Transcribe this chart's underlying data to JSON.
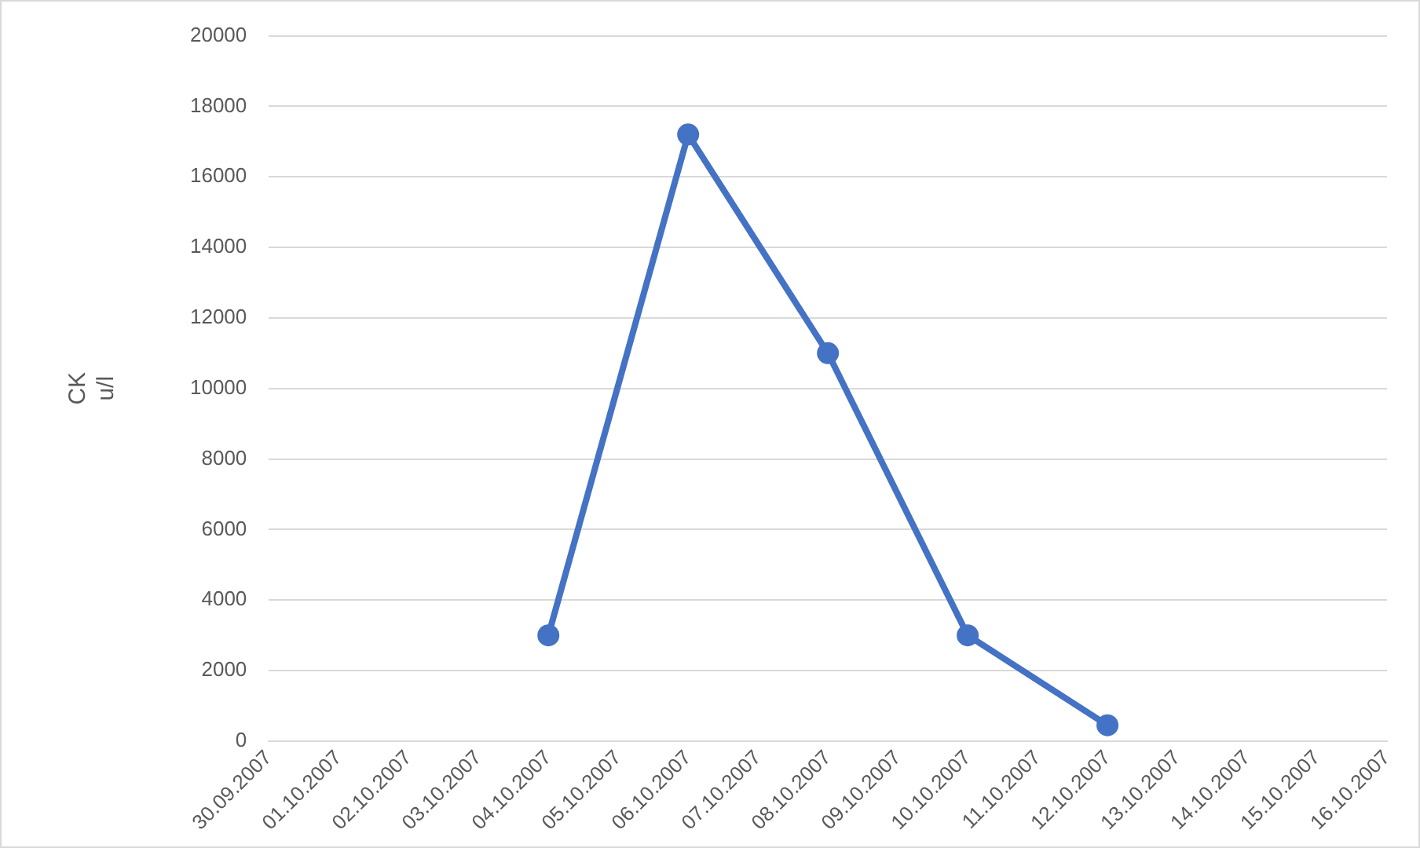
{
  "chart_data": {
    "type": "line",
    "ylabel": "CK\nu/l",
    "categories": [
      "30.09.2007",
      "01.10.2007",
      "02.10.2007",
      "03.10.2007",
      "04.10.2007",
      "05.10.2007",
      "06.10.2007",
      "07.10.2007",
      "08.10.2007",
      "09.10.2007",
      "10.10.2007",
      "11.10.2007",
      "12.10.2007",
      "13.10.2007",
      "14.10.2007",
      "15.10.2007",
      "16.10.2007"
    ],
    "series": [
      {
        "color": "#4472c4",
        "values": [
          null,
          null,
          null,
          null,
          3000,
          null,
          17200,
          null,
          11000,
          null,
          3000,
          null,
          450,
          null,
          null,
          null,
          null
        ]
      }
    ],
    "ylim": [
      0,
      20000
    ],
    "yticks": [
      0,
      2000,
      4000,
      6000,
      8000,
      10000,
      12000,
      14000,
      16000,
      18000,
      20000
    ],
    "grid": "y",
    "legend": false,
    "marker": "circle",
    "line_style": "solid"
  }
}
